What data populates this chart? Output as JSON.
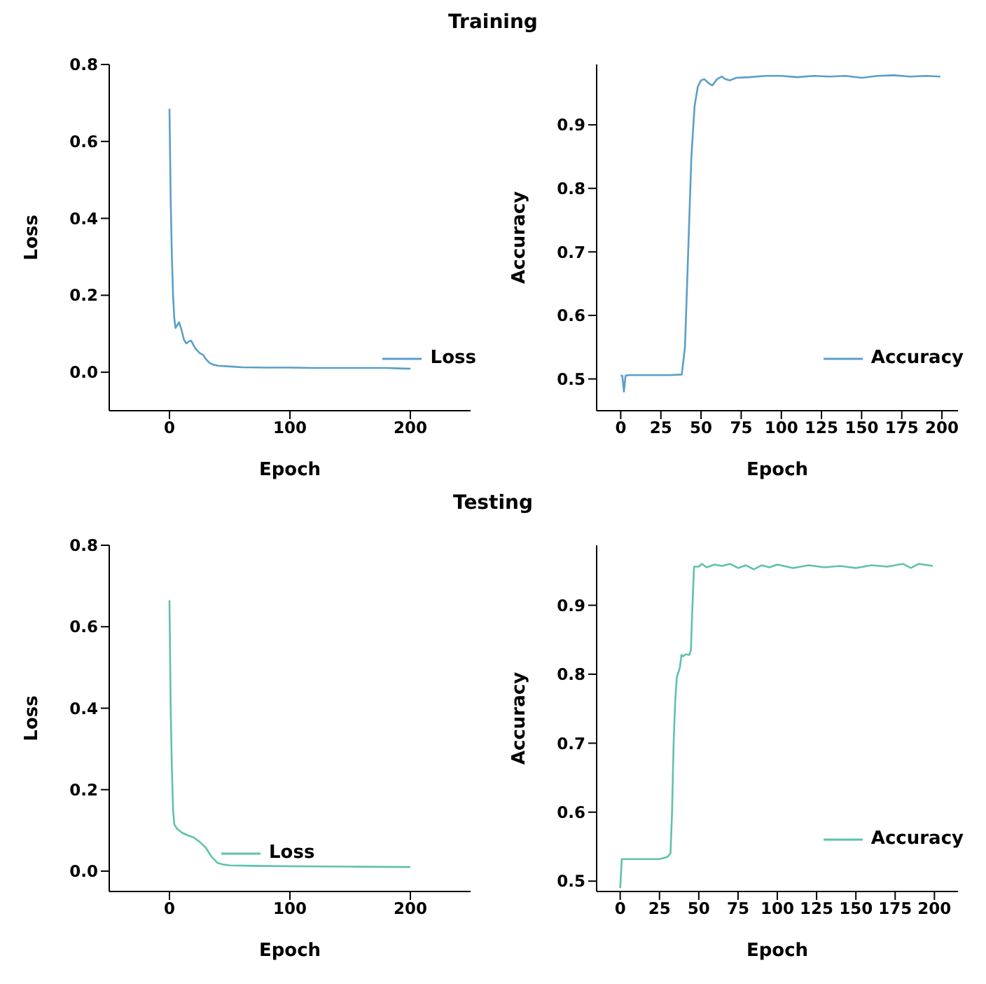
{
  "chart_data": [
    {
      "type": "line",
      "title": "Training",
      "xlabel": "Epoch",
      "ylabel": "Loss",
      "xlim": [
        -50,
        250
      ],
      "xticks": [
        0,
        100,
        200
      ],
      "ylim": [
        -0.1,
        0.8
      ],
      "yticks": [
        {
          "value": 0,
          "label": "0.0"
        },
        0.2,
        0.4,
        0.6,
        0.8
      ],
      "grid": false,
      "legend": "bottom right",
      "series": [
        {
          "name": "Loss",
          "color": "#5b9fc9",
          "x": [
            0,
            1,
            2,
            3,
            4,
            5,
            6,
            8,
            10,
            12,
            14,
            16,
            18,
            20,
            22,
            25,
            28,
            30,
            33,
            36,
            40,
            50,
            60,
            80,
            100,
            120,
            150,
            180,
            190,
            200
          ],
          "values": [
            0.685,
            0.45,
            0.3,
            0.2,
            0.14,
            0.115,
            0.12,
            0.13,
            0.11,
            0.085,
            0.075,
            0.08,
            0.082,
            0.07,
            0.06,
            0.05,
            0.045,
            0.035,
            0.025,
            0.02,
            0.017,
            0.015,
            0.013,
            0.012,
            0.012,
            0.011,
            0.011,
            0.011,
            0.01,
            0.009
          ]
        }
      ]
    },
    {
      "type": "line",
      "xlabel": "Epoch",
      "ylabel": "Accuracy",
      "xlim": [
        -15,
        210
      ],
      "xticks": [
        0,
        25,
        50,
        75,
        100,
        125,
        150,
        175,
        200
      ],
      "ylim": [
        0.45,
        0.995
      ],
      "yticks": [
        0.5,
        0.6,
        0.7,
        0.8,
        0.9
      ],
      "grid": false,
      "legend": "bottom right",
      "series": [
        {
          "name": "Accuracy",
          "color": "#5b9fc9",
          "x": [
            0,
            1,
            2,
            3,
            5,
            10,
            20,
            30,
            38,
            40,
            42,
            44,
            46,
            48,
            50,
            52,
            55,
            57,
            60,
            63,
            65,
            68,
            72,
            80,
            90,
            100,
            110,
            120,
            130,
            140,
            150,
            160,
            170,
            180,
            190,
            199
          ],
          "values": [
            0.505,
            0.505,
            0.48,
            0.505,
            0.506,
            0.506,
            0.506,
            0.506,
            0.507,
            0.55,
            0.7,
            0.85,
            0.93,
            0.96,
            0.97,
            0.972,
            0.965,
            0.962,
            0.972,
            0.976,
            0.972,
            0.97,
            0.974,
            0.975,
            0.977,
            0.977,
            0.975,
            0.977,
            0.976,
            0.977,
            0.974,
            0.977,
            0.978,
            0.976,
            0.977,
            0.976
          ]
        }
      ]
    },
    {
      "type": "line",
      "title": "Testing",
      "xlabel": "Epoch",
      "ylabel": "Loss",
      "xlim": [
        -50,
        250
      ],
      "xticks": [
        0,
        100,
        200
      ],
      "ylim": [
        -0.05,
        0.8
      ],
      "yticks": [
        {
          "value": 0,
          "label": "0.0"
        },
        0.2,
        0.4,
        0.6,
        0.8
      ],
      "grid": false,
      "legend": "bottom",
      "series": [
        {
          "name": "Loss",
          "color": "#5fc2ab",
          "x": [
            0,
            1,
            2,
            3,
            4,
            6,
            10,
            15,
            20,
            25,
            30,
            35,
            40,
            45,
            50,
            70,
            100,
            150,
            200
          ],
          "values": [
            0.665,
            0.4,
            0.25,
            0.15,
            0.115,
            0.105,
            0.095,
            0.088,
            0.083,
            0.072,
            0.058,
            0.035,
            0.02,
            0.016,
            0.014,
            0.013,
            0.012,
            0.011,
            0.01
          ]
        }
      ]
    },
    {
      "type": "line",
      "xlabel": "Epoch",
      "ylabel": "Accuracy",
      "xlim": [
        -15,
        215
      ],
      "xticks": [
        0,
        25,
        50,
        75,
        100,
        125,
        150,
        175,
        200
      ],
      "ylim": [
        0.485,
        0.987
      ],
      "yticks": [
        0.5,
        0.6,
        0.7,
        0.8,
        0.9
      ],
      "grid": false,
      "legend": "bottom right",
      "series": [
        {
          "name": "Accuracy",
          "color": "#5fc2ab",
          "x": [
            0,
            1,
            5,
            15,
            25,
            30,
            32,
            33,
            34,
            35,
            36,
            38,
            39,
            40,
            42,
            44,
            45,
            46,
            47,
            50,
            52,
            55,
            60,
            65,
            70,
            75,
            80,
            85,
            90,
            95,
            100,
            110,
            120,
            130,
            140,
            150,
            160,
            170,
            180,
            185,
            190,
            199
          ],
          "values": [
            0.49,
            0.532,
            0.532,
            0.532,
            0.532,
            0.535,
            0.54,
            0.6,
            0.7,
            0.76,
            0.795,
            0.81,
            0.828,
            0.826,
            0.829,
            0.828,
            0.835,
            0.9,
            0.956,
            0.956,
            0.96,
            0.955,
            0.959,
            0.957,
            0.96,
            0.954,
            0.958,
            0.952,
            0.958,
            0.955,
            0.959,
            0.954,
            0.958,
            0.955,
            0.957,
            0.954,
            0.958,
            0.956,
            0.96,
            0.954,
            0.96,
            0.957
          ]
        }
      ]
    }
  ]
}
